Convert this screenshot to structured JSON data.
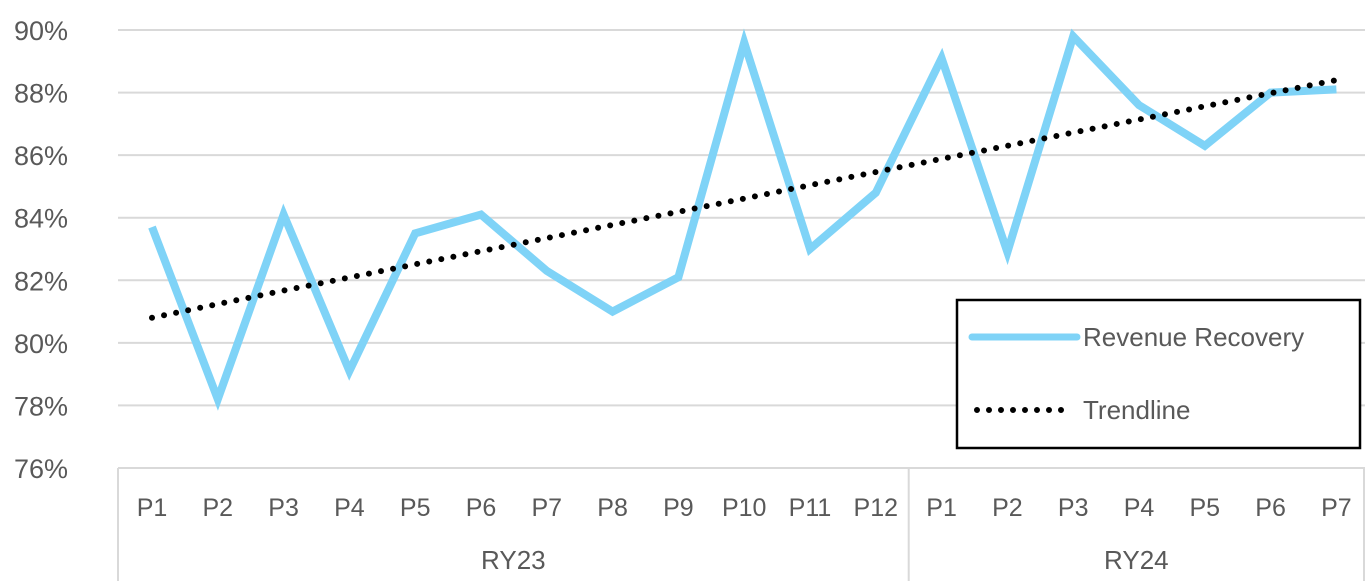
{
  "chart_data": {
    "type": "line",
    "title": "",
    "xlabel": "",
    "ylabel": "",
    "ylim": [
      76,
      90
    ],
    "yticks": [
      "76%",
      "78%",
      "80%",
      "82%",
      "84%",
      "86%",
      "88%",
      "90%"
    ],
    "categories": [
      "P1",
      "P2",
      "P3",
      "P4",
      "P5",
      "P6",
      "P7",
      "P8",
      "P9",
      "P10",
      "P11",
      "P12",
      "P1",
      "P2",
      "P3",
      "P4",
      "P5",
      "P6",
      "P7"
    ],
    "groups": [
      {
        "label": "RY23",
        "count": 12
      },
      {
        "label": "RY24",
        "count": 7
      }
    ],
    "grid": true,
    "legend_position": "bottom-right",
    "series": [
      {
        "name": "Revenue Recovery",
        "color": "#7fd3f7",
        "style": "solid",
        "values": [
          83.7,
          78.2,
          84.1,
          79.1,
          83.5,
          84.1,
          82.3,
          81.0,
          82.1,
          89.6,
          83.0,
          84.8,
          89.1,
          82.9,
          89.8,
          87.6,
          86.3,
          88.0,
          88.1
        ]
      },
      {
        "name": "Trendline",
        "color": "#000000",
        "style": "dotted",
        "values": [
          80.8,
          81.24,
          81.67,
          82.09,
          82.51,
          82.93,
          83.35,
          83.77,
          84.19,
          84.61,
          85.04,
          85.46,
          85.88,
          86.3,
          86.72,
          87.14,
          87.56,
          87.98,
          88.4
        ]
      }
    ]
  }
}
